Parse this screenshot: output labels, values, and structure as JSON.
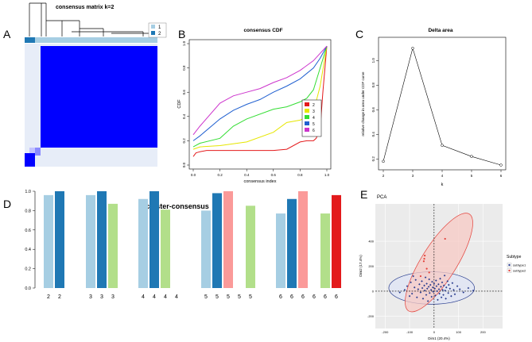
{
  "colors": {
    "blue_dark": "#1f78b4",
    "blue_light": "#a6cee3",
    "green_light": "#b2df8a",
    "pink": "#fb9a99",
    "red": "#e31a1c",
    "matrix_blue": "#0000ff",
    "cdf_k2": "#e41a1c",
    "cdf_k3": "#e6e600",
    "cdf_k4": "#33dd33",
    "cdf_k5": "#1f5fd0",
    "cdf_k6": "#cc33cc",
    "ellipse_fill_red": "#f7c9c4",
    "ellipse_stroke_red": "#e3413a",
    "ellipse_fill_blue": "#dfe4f5",
    "ellipse_stroke_blue": "#2b3f8f",
    "point_blue": "#2a3d8f",
    "point_red": "#e3413a"
  },
  "panels": {
    "A": {
      "letter": "A",
      "title": "consensus matrix k=2",
      "legend": [
        {
          "label": "1",
          "color": "#a6cee3"
        },
        {
          "label": "2",
          "color": "#1f78b4"
        }
      ]
    },
    "B": {
      "letter": "B"
    },
    "C": {
      "letter": "C"
    },
    "D": {
      "letter": "D"
    },
    "E": {
      "letter": "E"
    }
  },
  "chart_data": [
    {
      "id": "cdf",
      "type": "line",
      "title": "consensus CDF",
      "xlabel": "consensus index",
      "ylabel": "CDF",
      "xlim": [
        0,
        1
      ],
      "ylim": [
        0,
        1
      ],
      "xticks": [
        "0.0",
        "0.2",
        "0.4",
        "0.6",
        "0.8",
        "1.0"
      ],
      "yticks": [
        "0.0",
        "0.2",
        "0.4",
        "0.6",
        "0.8",
        "1.0"
      ],
      "legend_position": "right",
      "series": [
        {
          "name": "2",
          "color": "#e41a1c",
          "x": [
            0,
            0.02,
            0.05,
            0.1,
            0.2,
            0.4,
            0.6,
            0.7,
            0.8,
            0.85,
            0.9,
            0.92,
            0.95,
            0.97,
            1.0
          ],
          "y": [
            0.07,
            0.1,
            0.11,
            0.12,
            0.12,
            0.12,
            0.12,
            0.13,
            0.19,
            0.2,
            0.2,
            0.22,
            0.3,
            0.6,
            0.98
          ]
        },
        {
          "name": "3",
          "color": "#e6e600",
          "x": [
            0,
            0.05,
            0.2,
            0.4,
            0.6,
            0.7,
            0.8,
            0.85,
            0.9,
            0.95,
            1.0
          ],
          "y": [
            0.13,
            0.15,
            0.16,
            0.19,
            0.27,
            0.35,
            0.37,
            0.39,
            0.44,
            0.65,
            0.98
          ]
        },
        {
          "name": "4",
          "color": "#33dd33",
          "x": [
            0,
            0.05,
            0.2,
            0.3,
            0.4,
            0.6,
            0.7,
            0.8,
            0.85,
            0.9,
            0.95,
            1.0
          ],
          "y": [
            0.15,
            0.18,
            0.22,
            0.32,
            0.38,
            0.46,
            0.48,
            0.52,
            0.55,
            0.62,
            0.8,
            0.98
          ]
        },
        {
          "name": "5",
          "color": "#1f5fd0",
          "x": [
            0,
            0.05,
            0.2,
            0.3,
            0.4,
            0.5,
            0.6,
            0.7,
            0.8,
            0.9,
            0.95,
            1.0
          ],
          "y": [
            0.2,
            0.24,
            0.38,
            0.45,
            0.5,
            0.54,
            0.6,
            0.65,
            0.71,
            0.8,
            0.88,
            0.98
          ]
        },
        {
          "name": "6",
          "color": "#cc33cc",
          "x": [
            0,
            0.05,
            0.2,
            0.3,
            0.4,
            0.5,
            0.6,
            0.7,
            0.8,
            0.9,
            0.95,
            1.0
          ],
          "y": [
            0.25,
            0.32,
            0.51,
            0.57,
            0.6,
            0.63,
            0.68,
            0.72,
            0.78,
            0.86,
            0.92,
            0.98
          ]
        }
      ]
    },
    {
      "id": "delta",
      "type": "line",
      "title": "Delta area",
      "xlabel": "k",
      "ylabel": "relative change in area under CDF curve",
      "xlim": [
        2,
        6
      ],
      "ylim": [
        0.15,
        1.15
      ],
      "xticks": [
        "2",
        "3",
        "4",
        "5",
        "6"
      ],
      "yticks": [
        "0.2",
        "0.4",
        "0.6",
        "0.8",
        "1.0"
      ],
      "x": [
        2,
        3,
        4,
        5,
        6
      ],
      "y": [
        0.18,
        1.1,
        0.31,
        0.22,
        0.15
      ]
    },
    {
      "id": "cluster",
      "type": "bar",
      "title": "cluster-consensus",
      "yticks": [
        "0.0",
        "0.2",
        "0.4",
        "0.6",
        "0.8",
        "1.0"
      ],
      "ylim": [
        0,
        1
      ],
      "bars": [
        {
          "label": "2",
          "value": 0.96,
          "color": "#a6cee3"
        },
        {
          "label": "2",
          "value": 1.0,
          "color": "#1f78b4"
        },
        {
          "label": "3",
          "value": 0.96,
          "color": "#a6cee3"
        },
        {
          "label": "3",
          "value": 1.0,
          "color": "#1f78b4"
        },
        {
          "label": "3",
          "value": 0.87,
          "color": "#b2df8a"
        },
        {
          "label": "4",
          "value": 0.92,
          "color": "#a6cee3"
        },
        {
          "label": "4",
          "value": 1.0,
          "color": "#1f78b4"
        },
        {
          "label": "4",
          "value": 0.81,
          "color": "#b2df8a"
        },
        {
          "label": "4",
          "value": 0,
          "color": "#fb9a99"
        },
        {
          "label": "5",
          "value": 0.8,
          "color": "#a6cee3"
        },
        {
          "label": "5",
          "value": 0.98,
          "color": "#1f78b4"
        },
        {
          "label": "5",
          "value": 1.0,
          "color": "#fb9a99"
        },
        {
          "label": "5",
          "value": 0,
          "color": "#fb9a99"
        },
        {
          "label": "5",
          "value": 0.85,
          "color": "#b2df8a"
        },
        {
          "label": "6",
          "value": 0.77,
          "color": "#a6cee3"
        },
        {
          "label": "6",
          "value": 0.92,
          "color": "#1f78b4"
        },
        {
          "label": "6",
          "value": 1.0,
          "color": "#fb9a99"
        },
        {
          "label": "6",
          "value": 0,
          "color": "#fb9a99"
        },
        {
          "label": "6",
          "value": 0.77,
          "color": "#b2df8a"
        },
        {
          "label": "6",
          "value": 0.96,
          "color": "#e31a1c"
        }
      ]
    },
    {
      "id": "pca",
      "type": "scatter",
      "title": "PCA",
      "xlabel": "Dim1 (20.4%)",
      "ylabel": "Dim2 (17.4%)",
      "xlim": [
        -240,
        280
      ],
      "ylim": [
        -300,
        700
      ],
      "xticks": [
        "-200",
        "-100",
        "0",
        "100",
        "200"
      ],
      "yticks": [
        "-200",
        "0",
        "200",
        "400"
      ],
      "legend_title": "Subtype",
      "legend": [
        {
          "label": "subtype1",
          "color": "#2a3d8f"
        },
        {
          "label": "subtype2",
          "color": "#e3413a"
        }
      ],
      "series": [
        {
          "name": "subtype1",
          "color": "#2a3d8f",
          "points": [
            [
              -120,
              10
            ],
            [
              -110,
              40
            ],
            [
              -95,
              70
            ],
            [
              -90,
              -20
            ],
            [
              -80,
              30
            ],
            [
              -75,
              90
            ],
            [
              -70,
              -50
            ],
            [
              -65,
              15
            ],
            [
              -60,
              55
            ],
            [
              -55,
              -10
            ],
            [
              -50,
              80
            ],
            [
              -48,
              25
            ],
            [
              -45,
              -60
            ],
            [
              -40,
              45
            ],
            [
              -38,
              5
            ],
            [
              -35,
              110
            ],
            [
              -32,
              -30
            ],
            [
              -30,
              60
            ],
            [
              -28,
              20
            ],
            [
              -25,
              -80
            ],
            [
              -22,
              35
            ],
            [
              -20,
              95
            ],
            [
              -18,
              -15
            ],
            [
              -15,
              50
            ],
            [
              -12,
              10
            ],
            [
              -10,
              -45
            ],
            [
              -8,
              75
            ],
            [
              -5,
              30
            ],
            [
              -3,
              -5
            ],
            [
              0,
              60
            ],
            [
              3,
              20
            ],
            [
              5,
              -35
            ],
            [
              8,
              85
            ],
            [
              10,
              40
            ],
            [
              12,
              0
            ],
            [
              15,
              -70
            ],
            [
              18,
              55
            ],
            [
              20,
              15
            ],
            [
              22,
              -20
            ],
            [
              25,
              100
            ],
            [
              28,
              35
            ],
            [
              30,
              -50
            ],
            [
              33,
              70
            ],
            [
              35,
              10
            ],
            [
              38,
              -30
            ],
            [
              40,
              45
            ],
            [
              43,
              125
            ],
            [
              45,
              5
            ],
            [
              48,
              -60
            ],
            [
              50,
              30
            ],
            [
              55,
              80
            ],
            [
              58,
              -15
            ],
            [
              60,
              50
            ],
            [
              65,
              20
            ],
            [
              70,
              -40
            ],
            [
              75,
              65
            ],
            [
              80,
              10
            ],
            [
              85,
              -25
            ],
            [
              95,
              40
            ],
            [
              105,
              15
            ],
            [
              120,
              -10
            ],
            [
              140,
              25
            ],
            [
              160,
              5
            ],
            [
              -140,
              -10
            ],
            [
              -100,
              -40
            ],
            [
              -85,
              120
            ]
          ]
        },
        {
          "name": "subtype2",
          "color": "#e3413a",
          "points": [
            [
              -40,
              260
            ],
            [
              -38,
              285
            ],
            [
              -42,
              240
            ],
            [
              -30,
              180
            ],
            [
              45,
              420
            ],
            [
              -55,
              120
            ],
            [
              -20,
              150
            ]
          ]
        }
      ],
      "ellipses": [
        {
          "group": "subtype1",
          "cx": -10,
          "cy": 25,
          "rx": 175,
          "ry": 130,
          "angle_deg": 0
        },
        {
          "group": "subtype2",
          "cx": 20,
          "cy": 230,
          "rx": 310,
          "ry": 95,
          "angle_deg": 58
        }
      ]
    }
  ]
}
